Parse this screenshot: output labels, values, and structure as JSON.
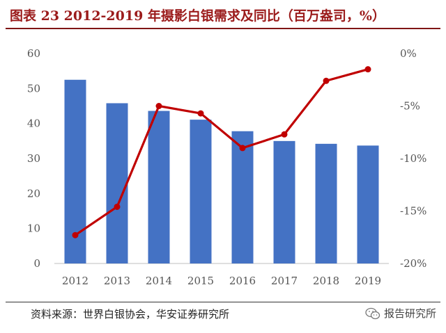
{
  "title": "图表 23 2012-2019 年摄影白银需求及同比（百万盎司，%）",
  "source": "资料来源：世界白银协会，华安证券研究所",
  "brand": {
    "label": "报告研究所",
    "icon": "wechat-icon"
  },
  "chart_data": {
    "type": "bar",
    "categories": [
      "2012",
      "2013",
      "2014",
      "2015",
      "2016",
      "2017",
      "2018",
      "2019"
    ],
    "series": [
      {
        "type": "bar",
        "axis": "left",
        "color": "#4472c4",
        "values": [
          52.5,
          45.8,
          43.6,
          41.1,
          37.8,
          35.0,
          34.2,
          33.7
        ]
      },
      {
        "type": "line",
        "axis": "right",
        "color": "#c00000",
        "values": [
          -17.3,
          -14.6,
          -5.0,
          -5.7,
          -9.0,
          -7.7,
          -2.6,
          -1.5
        ]
      }
    ],
    "left_axis": {
      "min": 0,
      "max": 60,
      "ticks": [
        "0",
        "10",
        "20",
        "30",
        "40",
        "50",
        "60"
      ]
    },
    "right_axis": {
      "min": -20,
      "max": 0,
      "ticks": [
        "0%",
        "-5%",
        "-10%",
        "-15%",
        "-20%"
      ]
    },
    "grid": false,
    "legend": "none"
  }
}
